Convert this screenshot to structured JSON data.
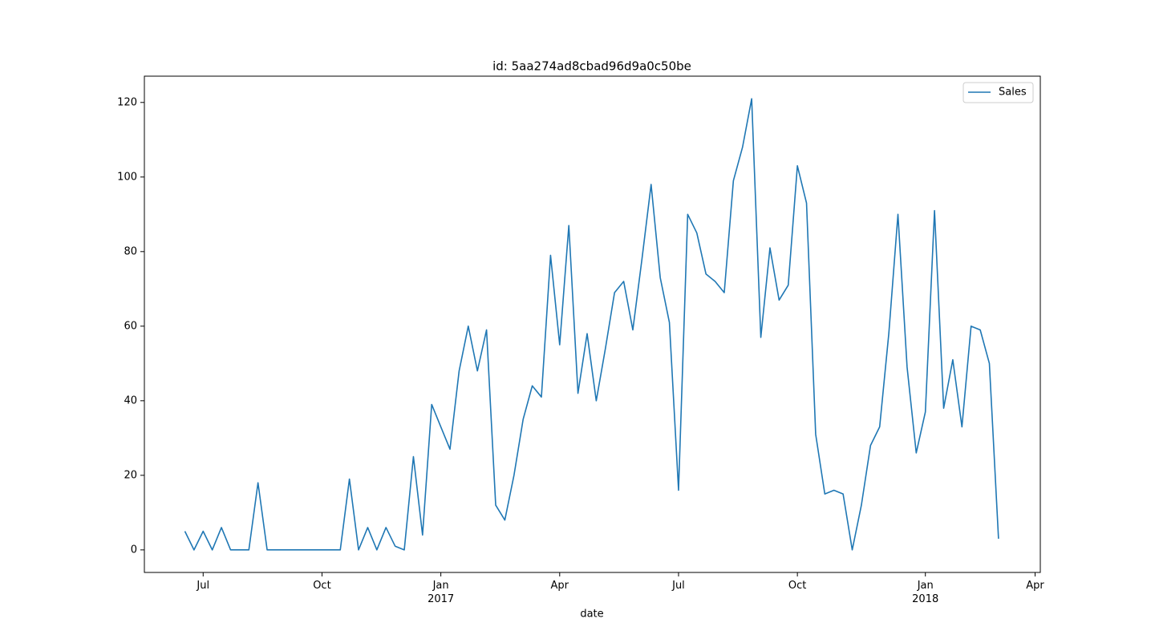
{
  "chart_data": {
    "type": "line",
    "title": "id: 5aa274ad8cbad96d9a0c50be",
    "xlabel": "date",
    "x": [
      "2016-06-19",
      "2016-06-26",
      "2016-07-03",
      "2016-07-10",
      "2016-07-17",
      "2016-07-24",
      "2016-07-31",
      "2016-08-07",
      "2016-08-14",
      "2016-08-21",
      "2016-08-28",
      "2016-09-04",
      "2016-09-11",
      "2016-09-18",
      "2016-09-25",
      "2016-10-02",
      "2016-10-09",
      "2016-10-16",
      "2016-10-23",
      "2016-10-30",
      "2016-11-06",
      "2016-11-13",
      "2016-11-20",
      "2016-11-27",
      "2016-12-04",
      "2016-12-11",
      "2016-12-18",
      "2016-12-25",
      "2017-01-01",
      "2017-01-08",
      "2017-01-15",
      "2017-01-22",
      "2017-01-29",
      "2017-02-05",
      "2017-02-12",
      "2017-02-19",
      "2017-02-26",
      "2017-03-05",
      "2017-03-12",
      "2017-03-19",
      "2017-03-26",
      "2017-04-02",
      "2017-04-09",
      "2017-04-16",
      "2017-04-23",
      "2017-04-30",
      "2017-05-07",
      "2017-05-14",
      "2017-05-21",
      "2017-05-28",
      "2017-06-04",
      "2017-06-11",
      "2017-06-18",
      "2017-06-25",
      "2017-07-02",
      "2017-07-09",
      "2017-07-16",
      "2017-07-23",
      "2017-07-30",
      "2017-08-06",
      "2017-08-13",
      "2017-08-20",
      "2017-08-27",
      "2017-09-03",
      "2017-09-10",
      "2017-09-17",
      "2017-09-24",
      "2017-10-01",
      "2017-10-08",
      "2017-10-15",
      "2017-10-22",
      "2017-10-29",
      "2017-11-05",
      "2017-11-12",
      "2017-11-19",
      "2017-11-26",
      "2017-12-03",
      "2017-12-10",
      "2017-12-17",
      "2017-12-24",
      "2017-12-31",
      "2018-01-07",
      "2018-01-14",
      "2018-01-21",
      "2018-01-28",
      "2018-02-04",
      "2018-02-11",
      "2018-02-18",
      "2018-02-25",
      "2018-03-04"
    ],
    "series": [
      {
        "name": "Sales",
        "color": "#1f77b4",
        "values": [
          5,
          0,
          5,
          0,
          6,
          0,
          0,
          0,
          18,
          0,
          0,
          0,
          0,
          0,
          0,
          0,
          0,
          0,
          19,
          0,
          6,
          0,
          6,
          1,
          0,
          25,
          4,
          39,
          33,
          27,
          48,
          60,
          48,
          59,
          12,
          8,
          20,
          35,
          44,
          41,
          79,
          55,
          87,
          42,
          58,
          40,
          54,
          69,
          72,
          59,
          78,
          98,
          73,
          61,
          16,
          90,
          85,
          74,
          72,
          69,
          99,
          108,
          121,
          57,
          81,
          67,
          71,
          103,
          93,
          31,
          15,
          16,
          15,
          0,
          12,
          28,
          33,
          58,
          90,
          49,
          26,
          37,
          91,
          38,
          51,
          33,
          60,
          59,
          50,
          3
        ]
      }
    ],
    "xlim": [
      "2016-05-19",
      "2018-04-05"
    ],
    "xticks": [
      {
        "value": "2016-07-03",
        "label": "Jul"
      },
      {
        "value": "2016-10-02",
        "label": "Oct"
      },
      {
        "value": "2017-01-01",
        "label": "Jan\n2017"
      },
      {
        "value": "2017-04-02",
        "label": "Apr"
      },
      {
        "value": "2017-07-02",
        "label": "Jul"
      },
      {
        "value": "2017-10-01",
        "label": "Oct"
      },
      {
        "value": "2018-01-07",
        "label": "Jan\n2018"
      },
      {
        "value": "2018-04-01",
        "label": "Apr"
      }
    ],
    "ylim": [
      -6.05,
      127.05
    ],
    "yticks": [
      0,
      20,
      40,
      60,
      80,
      100,
      120
    ],
    "grid": false,
    "legend": "upper right"
  }
}
